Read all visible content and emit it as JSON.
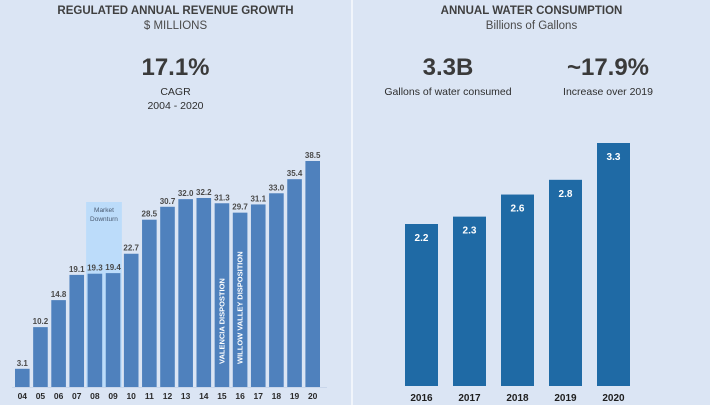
{
  "left": {
    "title": "REGULATED ANNUAL REVENUE GROWTH",
    "subtitle": "$ MILLIONS",
    "kpi": {
      "value": "17.1%",
      "label": "CAGR",
      "period": "2004 - 2020"
    }
  },
  "right": {
    "title": "ANNUAL WATER CONSUMPTION",
    "subtitle": "Billions of Gallons",
    "kpis": [
      {
        "value": "3.3B",
        "label": "Gallons of water consumed"
      },
      {
        "value": "~17.9%",
        "label": "Increase over 2019"
      }
    ]
  },
  "colors": {
    "background": "#dbe5f4",
    "revenue_bar": "#4f81bd",
    "water_bar": "#1f6aa5",
    "highlight": "#bcdcfa"
  },
  "chart_data": [
    {
      "type": "bar",
      "title": "REGULATED ANNUAL REVENUE GROWTH",
      "subtitle": "$ MILLIONS",
      "xlabel": "",
      "ylabel": "",
      "categories": [
        "04",
        "05",
        "06",
        "07",
        "08",
        "09",
        "10",
        "11",
        "12",
        "13",
        "14",
        "15",
        "16",
        "17",
        "18",
        "19",
        "20"
      ],
      "values": [
        3.1,
        10.2,
        14.8,
        19.1,
        19.3,
        19.4,
        22.7,
        28.5,
        30.7,
        32.0,
        32.2,
        31.3,
        29.7,
        31.1,
        33.0,
        35.4,
        38.5
      ],
      "labels": [
        "3.1",
        "10.2",
        "14.8",
        "19.1",
        "19.3",
        "19.4",
        "22.7",
        "28.5",
        "30.7",
        "32.0",
        "32.2",
        "31.3",
        "29.7",
        "31.1",
        "33.0",
        "35.4",
        "38.5"
      ],
      "ylim": [
        0,
        40
      ],
      "grid": false,
      "annotations": [
        {
          "type": "highlight-band",
          "categories": [
            "08",
            "09"
          ],
          "text_lines": [
            "Market",
            "Downturn"
          ]
        },
        {
          "type": "vertical-text",
          "category": "15",
          "text": "VALENCIA DISPOSTION"
        },
        {
          "type": "vertical-text",
          "category": "16",
          "text": "WILLOW VALLEY DISPOSITION"
        }
      ]
    },
    {
      "type": "bar",
      "title": "ANNUAL WATER CONSUMPTION",
      "subtitle": "Billions of Gallons",
      "xlabel": "",
      "ylabel": "",
      "categories": [
        "2016",
        "2017",
        "2018",
        "2019",
        "2020"
      ],
      "values": [
        2.2,
        2.3,
        2.6,
        2.8,
        3.3
      ],
      "labels": [
        "2.2",
        "2.3",
        "2.6",
        "2.8",
        "3.3"
      ],
      "ylim": [
        0,
        3.3
      ],
      "grid": false
    }
  ]
}
